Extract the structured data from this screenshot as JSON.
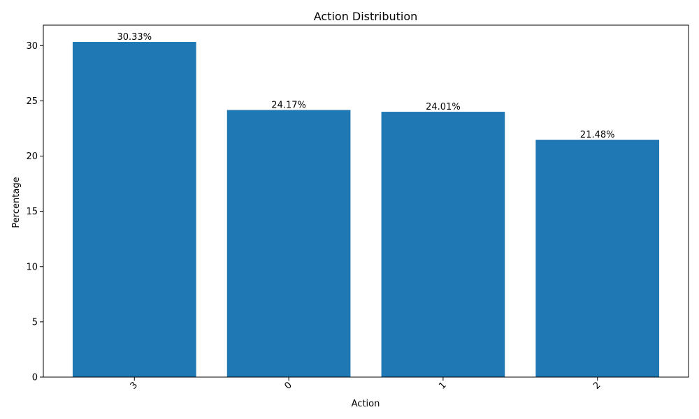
{
  "chart_data": {
    "type": "bar",
    "title": "Action Distribution",
    "xlabel": "Action",
    "ylabel": "Percentage",
    "categories": [
      "3",
      "0",
      "1",
      "2"
    ],
    "values": [
      30.33,
      24.17,
      24.01,
      21.48
    ],
    "value_labels": [
      "30.33%",
      "24.17%",
      "24.01%",
      "21.48%"
    ],
    "ylim": [
      0,
      31.85
    ],
    "yticks": [
      0,
      5,
      10,
      15,
      20,
      25,
      30
    ],
    "ytick_labels": [
      "0",
      "5",
      "10",
      "15",
      "20",
      "25",
      "30"
    ],
    "xtick_rotation_deg": 45,
    "grid": false,
    "bar_color": "#1f77b4"
  }
}
